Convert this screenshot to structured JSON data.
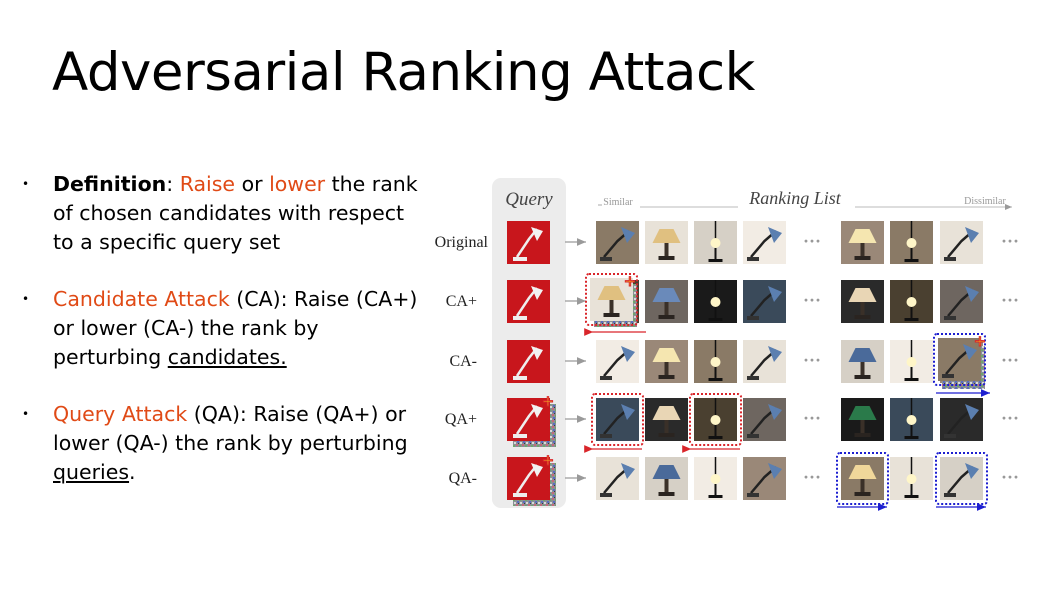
{
  "slide": {
    "title": "Adversarial Ranking Attack"
  },
  "bullets": [
    {
      "marker": "•",
      "term": "Definition",
      "sep": ": ",
      "word_raise": "Raise",
      "or": " or ",
      "word_lower": "lower",
      "rest": " the rank of chosen candidates with respect to a specific query set"
    },
    {
      "marker": "•",
      "term": "Candidate Attack",
      "rest": " (CA): Raise (CA+) or lower (CA-) the rank by perturbing ",
      "underlined": "candidates.",
      "tail": ""
    },
    {
      "marker": "•",
      "term": "Query Attack",
      "rest": " (QA): Raise (QA+) or lower (QA-) the rank by perturbing ",
      "underlined": "queries",
      "tail": "."
    }
  ],
  "figure": {
    "query_header": "Query",
    "ranking_header": "Ranking List",
    "similar_label": "Similar",
    "dissimilar_label": "Dissimilar",
    "ellipsis": "···",
    "plus": "+",
    "rows": [
      "Original",
      "CA+",
      "CA-",
      "QA+",
      "QA-"
    ],
    "colors": {
      "orange": "#e04a16",
      "red_box": "#d9252a",
      "blue_box": "#1d1fd0",
      "plus_yellow": "#f2d31a",
      "query_red": "#c8161c",
      "panel_gray": "#ececec"
    }
  }
}
